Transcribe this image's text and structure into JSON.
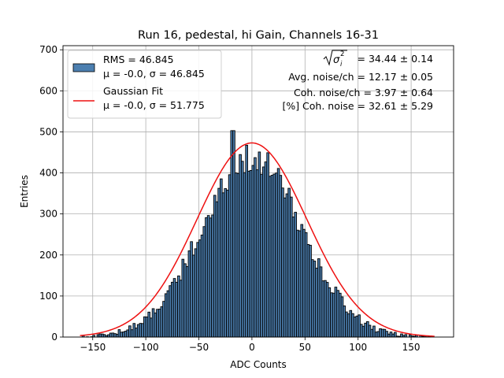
{
  "chart_data": {
    "type": "bar",
    "title": "Run 16, pedestal, hi Gain, Channels 16-31",
    "xlabel": "ADC Counts",
    "ylabel": "Entries",
    "xlim": [
      -178,
      190
    ],
    "ylim": [
      0,
      710
    ],
    "grid": true,
    "xticks": [
      -150,
      -100,
      -50,
      0,
      50,
      100,
      150
    ],
    "xtick_labels": [
      "−150",
      "−100",
      "−50",
      "0",
      "50",
      "100",
      "150"
    ],
    "yticks": [
      0,
      100,
      200,
      300,
      400,
      500,
      600,
      700
    ],
    "ytick_labels": [
      "0",
      "100",
      "200",
      "300",
      "400",
      "500",
      "600",
      "700"
    ],
    "histogram": {
      "name": "RMS = 46.845",
      "mu": -0.0,
      "sigma": 46.845,
      "bin_width": 2,
      "x_start": -162,
      "x_end": 172,
      "peak_value": 503,
      "peak_x": -18,
      "color": "#4c7fb0",
      "edge_color": "#000000"
    },
    "fit": {
      "name": "Gaussian Fit",
      "mu": -0.0,
      "sigma": 51.775,
      "amplitude": 473,
      "x_range": [
        -162,
        172
      ],
      "color": "#ee1111"
    },
    "legend": {
      "location": "top-left",
      "entries": [
        {
          "line1": "RMS = 46.845",
          "line2": "μ = -0.0, σ = 46.845",
          "kind": "patch"
        },
        {
          "line1": "Gaussian Fit",
          "line2": "μ = -0.0, σ = 51.775",
          "kind": "line"
        }
      ]
    },
    "annotations": {
      "sigma_i": "= 34.44 ± 0.14",
      "avg_noise": "Avg. noise/ch = 12.17 ± 0.05",
      "coh_noise": "Coh. noise/ch = 3.97 ± 0.64",
      "coh_noise_pct": "[%] Coh. noise = 32.61 ± 5.29"
    }
  }
}
